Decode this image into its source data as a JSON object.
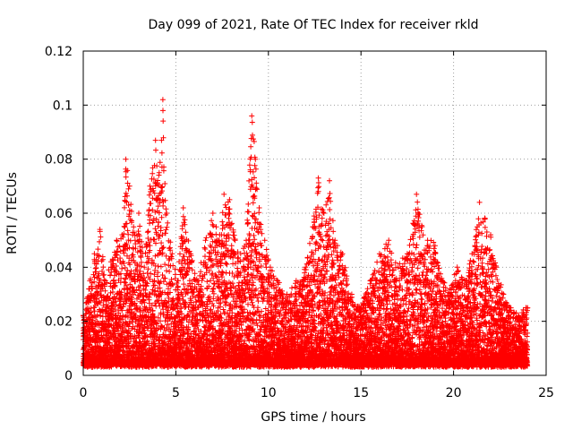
{
  "chart_data": {
    "type": "scatter",
    "title": "Day 099 of 2021, Rate Of TEC Index for receiver rkld",
    "xlabel": "GPS time / hours",
    "ylabel": "ROTI / TECUs",
    "xlim": [
      0,
      25
    ],
    "ylim": [
      0,
      0.12
    ],
    "xticks": [
      0,
      5,
      10,
      15,
      20,
      25
    ],
    "yticks": [
      0,
      0.02,
      0.04,
      0.06,
      0.08,
      0.1,
      0.12
    ],
    "xtick_labels": [
      "0",
      "5",
      "10",
      "15",
      "20",
      "25"
    ],
    "ytick_labels": [
      "0",
      "0.02",
      "0.04",
      "0.06",
      "0.08",
      "0.1",
      "0.12"
    ],
    "grid": true,
    "legend": "none",
    "marker": "+",
    "color": "#ff0000",
    "envelope": {
      "x": [
        0.0,
        0.3,
        0.6,
        0.9,
        1.2,
        1.5,
        1.8,
        2.1,
        2.3,
        2.5,
        2.8,
        3.0,
        3.3,
        3.6,
        3.9,
        4.1,
        4.3,
        4.5,
        4.8,
        5.1,
        5.4,
        5.8,
        6.2,
        6.6,
        7.0,
        7.3,
        7.6,
        7.9,
        8.2,
        8.5,
        8.8,
        9.1,
        9.3,
        9.5,
        9.8,
        10.1,
        10.5,
        11.0,
        11.5,
        12.0,
        12.4,
        12.7,
        13.0,
        13.3,
        13.6,
        14.0,
        14.5,
        15.0,
        15.5,
        16.0,
        16.5,
        17.0,
        17.5,
        18.0,
        18.3,
        18.6,
        19.0,
        19.4,
        19.8,
        20.2,
        20.6,
        21.0,
        21.4,
        21.7,
        22.0,
        22.3,
        22.7,
        23.1,
        23.5,
        24.0
      ],
      "y": [
        0.022,
        0.032,
        0.045,
        0.054,
        0.035,
        0.042,
        0.05,
        0.052,
        0.08,
        0.07,
        0.05,
        0.06,
        0.04,
        0.07,
        0.087,
        0.075,
        0.102,
        0.06,
        0.045,
        0.035,
        0.062,
        0.045,
        0.035,
        0.05,
        0.06,
        0.05,
        0.067,
        0.065,
        0.05,
        0.045,
        0.05,
        0.096,
        0.08,
        0.062,
        0.05,
        0.04,
        0.035,
        0.03,
        0.035,
        0.04,
        0.055,
        0.073,
        0.06,
        0.072,
        0.05,
        0.045,
        0.03,
        0.025,
        0.035,
        0.045,
        0.05,
        0.04,
        0.045,
        0.067,
        0.055,
        0.05,
        0.048,
        0.035,
        0.032,
        0.04,
        0.035,
        0.045,
        0.064,
        0.058,
        0.052,
        0.04,
        0.03,
        0.025,
        0.022,
        0.025
      ]
    }
  }
}
